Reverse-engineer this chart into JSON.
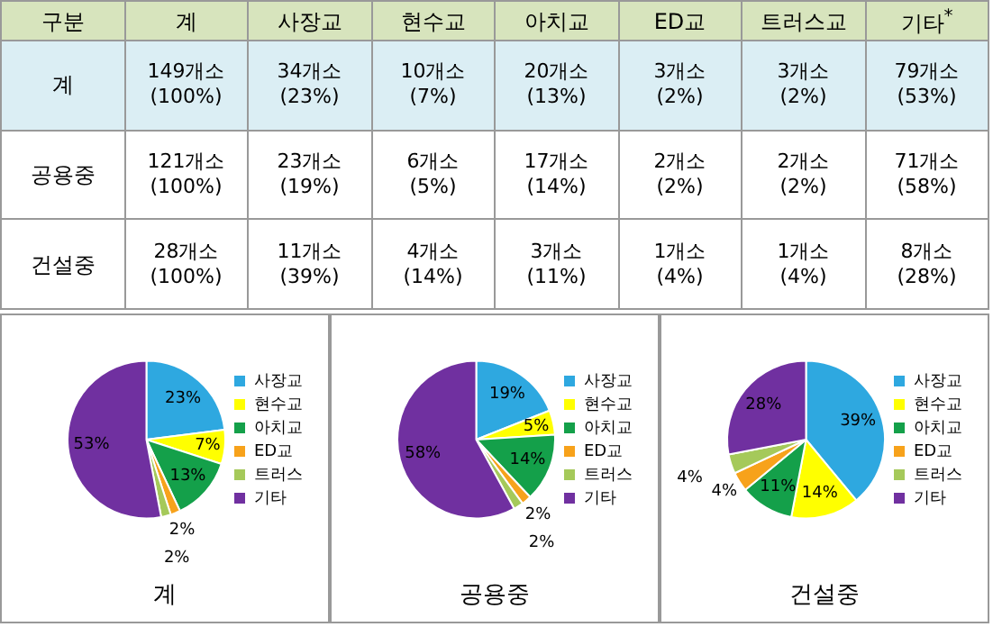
{
  "chart_data": [
    {
      "type": "other",
      "categories": [
        "구분",
        "계",
        "사장교",
        "현수교",
        "아치교",
        "ED교",
        "트러스교",
        "기타$^{*}$"
      ],
      "y_categories": [
        "계",
        "공용중",
        "건설중"
      ],
      "cell_labels": [
        [
          "149개소\n(100%)",
          "34개소\n(23%)",
          "10개소\n(7%)",
          "20개소\n(13%)",
          "3개소\n(2%)",
          "3개소\n(2%)",
          "79개소\n(53%)"
        ],
        [
          "121개소\n(100%)",
          "23개소\n(19%)",
          "6개소\n(5%)",
          "17개소\n(14%)",
          "2개소\n(2%)",
          "2개소\n(2%)",
          "71개소\n(58%)"
        ],
        [
          "28개소\n(100%)",
          "11개소\n(39%)",
          "4개소\n(14%)",
          "3개소\n(11%)",
          "1개소\n(4%)",
          "1개소\n(4%)",
          "8개소\n(28%)"
        ]
      ]
    },
    {
      "type": "pie",
      "title": "계",
      "categories": [
        "사장교",
        "현수교",
        "아치교",
        "ED교",
        "트러스",
        "기타"
      ],
      "values": [
        23,
        7,
        13,
        2,
        2,
        53
      ],
      "value_labels": [
        "23%",
        "7%",
        "13%",
        "2%",
        "2%",
        "53%"
      ],
      "colors": [
        "#2ea8e0",
        "#ffff00",
        "#14a04a",
        "#f7a21b",
        "#a5c95a",
        "#7030a0"
      ],
      "legend": "right"
    },
    {
      "type": "pie",
      "title": "공용중",
      "categories": [
        "사장교",
        "현수교",
        "아치교",
        "ED교",
        "트러스",
        "기타"
      ],
      "values": [
        19,
        5,
        14,
        2,
        2,
        58
      ],
      "value_labels": [
        "19%",
        "5%",
        "14%",
        "2%",
        "2%",
        "58%"
      ],
      "colors": [
        "#2ea8e0",
        "#ffff00",
        "#14a04a",
        "#f7a21b",
        "#a5c95a",
        "#7030a0"
      ],
      "legend": "right"
    },
    {
      "type": "pie",
      "title": "건설중",
      "categories": [
        "사장교",
        "현수교",
        "아치교",
        "ED교",
        "트러스",
        "기타"
      ],
      "values": [
        39,
        14,
        11,
        4,
        4,
        28
      ],
      "value_labels": [
        "39%",
        "14%",
        "11%",
        "4%",
        "4%",
        "28%"
      ],
      "colors": [
        "#2ea8e0",
        "#ffff00",
        "#14a04a",
        "#f7a21b",
        "#a5c95a",
        "#7030a0"
      ],
      "legend": "right"
    }
  ]
}
